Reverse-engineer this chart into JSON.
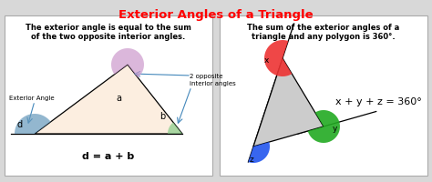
{
  "title": "Exterior Angles of a Triangle",
  "title_color": "#FF0000",
  "bg_color": "#D8D8D8",
  "panel_color": "#FFFFFF",
  "left_text1": "The exterior angle is equal to the sum",
  "left_text2": "of the two opposite interior angles.",
  "right_text1": "The sum of the exterior angles of a",
  "right_text2": "triangle and any polygon is 360°.",
  "left_formula": "d = a + b",
  "right_formula": "x + y + z = 360°",
  "exterior_angle_label": "Exterior Angle",
  "two_opposite_label": "2 opposite\ninterior angles",
  "triangle1_fill": "#FCEEE0",
  "angle_a_color": "#CC99CC",
  "angle_b_color": "#88CC88",
  "angle_d_color": "#6699BB",
  "angle_x_color": "#EE3333",
  "angle_y_color": "#22AA22",
  "angle_z_color": "#2255EE"
}
